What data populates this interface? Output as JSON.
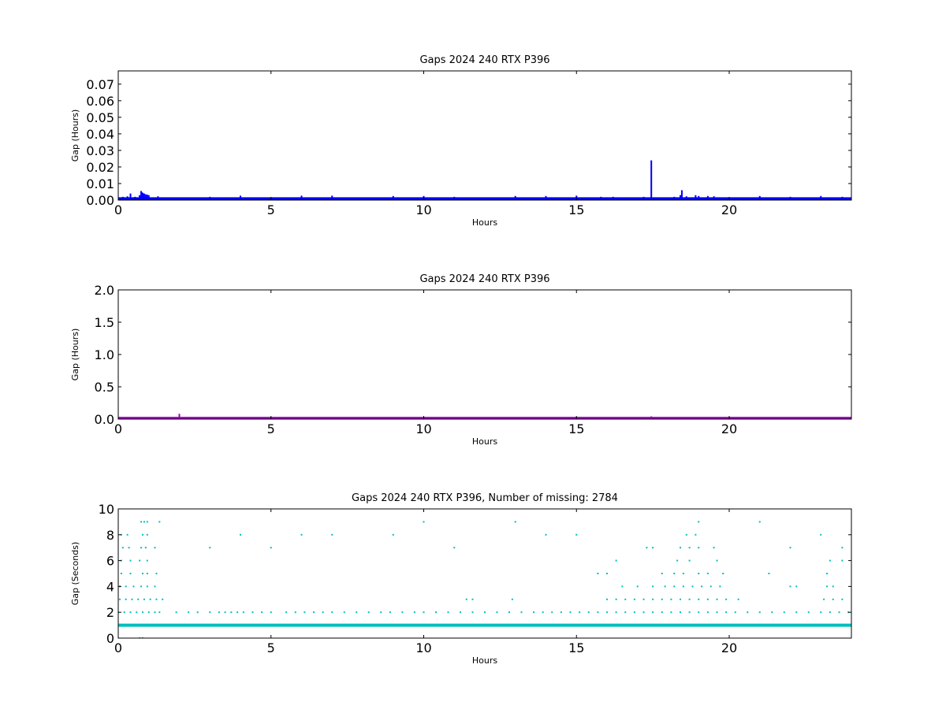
{
  "chart_data": [
    {
      "type": "scatter",
      "title": "Gaps 2024 240 RTX  P396",
      "xlabel": "Hours",
      "ylabel": "Gap (Hours)",
      "xlim": [
        0,
        24
      ],
      "ylim": [
        0,
        0.078
      ],
      "xticks": [
        0,
        5,
        10,
        15,
        20
      ],
      "yticks": [
        0.0,
        0.01,
        0.02,
        0.03,
        0.04,
        0.05,
        0.06,
        0.07
      ],
      "ytick_labels": [
        "0.00",
        "0.01",
        "0.02",
        "0.03",
        "0.04",
        "0.05",
        "0.06",
        "0.07"
      ],
      "grid": false,
      "color": "#0000ff",
      "baseline": {
        "value": 0.0008,
        "x_range": [
          0,
          24
        ]
      },
      "x": [
        0.15,
        0.3,
        0.4,
        0.55,
        0.7,
        0.75,
        0.78,
        0.8,
        0.85,
        0.9,
        0.95,
        1.0,
        1.3,
        3.0,
        4.0,
        6.0,
        7.0,
        9.0,
        10.0,
        11.0,
        13.0,
        14.0,
        15.0,
        15.8,
        16.2,
        17.2,
        17.45,
        18.2,
        18.4,
        18.45,
        18.6,
        18.9,
        19.0,
        19.3,
        19.5,
        21.0,
        22.0,
        23.0,
        23.7
      ],
      "y": [
        0.0015,
        0.0018,
        0.0035,
        0.0015,
        0.0025,
        0.005,
        0.0042,
        0.0038,
        0.0035,
        0.003,
        0.0028,
        0.0025,
        0.0018,
        0.0015,
        0.0022,
        0.0022,
        0.0022,
        0.002,
        0.002,
        0.0015,
        0.002,
        0.002,
        0.0022,
        0.0015,
        0.0015,
        0.0015,
        0.0235,
        0.0015,
        0.0025,
        0.0055,
        0.0018,
        0.0025,
        0.002,
        0.002,
        0.0018,
        0.002,
        0.0015,
        0.002,
        0.0015
      ]
    },
    {
      "type": "scatter",
      "title": "Gaps 2024 240 RTX  P396",
      "xlabel": "Hours",
      "ylabel": "Gap (Hours)",
      "xlim": [
        0,
        24
      ],
      "ylim": [
        0,
        2.0
      ],
      "xticks": [
        0,
        5,
        10,
        15,
        20
      ],
      "yticks": [
        0.0,
        0.5,
        1.0,
        1.5,
        2.0
      ],
      "ytick_labels": [
        "0.0",
        "0.5",
        "1.0",
        "1.5",
        "2.0"
      ],
      "grid": false,
      "color": "#a000c0",
      "baseline": {
        "value": 0.01,
        "x_range": [
          0,
          24
        ]
      },
      "x": [
        2.0,
        17.45
      ],
      "y": [
        0.07,
        0.03
      ]
    },
    {
      "type": "scatter",
      "title": "Gaps 2024 240 RTX  P396, Number of missing: 2784",
      "xlabel": "Hours",
      "ylabel": "Gap (Seconds)",
      "xlim": [
        0,
        24
      ],
      "ylim": [
        0,
        10
      ],
      "xticks": [
        0,
        5,
        10,
        15,
        20
      ],
      "yticks": [
        0,
        2,
        4,
        6,
        8,
        10
      ],
      "ytick_labels": [
        "0",
        "2",
        "4",
        "6",
        "8",
        "10"
      ],
      "grid": false,
      "color": "#00bfbf",
      "baseline": {
        "value": 1,
        "x_range": [
          0,
          24
        ]
      },
      "rows": [
        {
          "y": 0,
          "x": [
            0.7,
            0.8
          ]
        },
        {
          "y": 2,
          "x": [
            0,
            0.2,
            0.4,
            0.6,
            0.8,
            1.0,
            1.2,
            1.35,
            1.9,
            2.3,
            2.6,
            3.0,
            3.3,
            3.5,
            3.7,
            3.9,
            4.1,
            4.4,
            4.7,
            5.0,
            5.5,
            5.8,
            6.1,
            6.4,
            6.7,
            7.0,
            7.4,
            7.8,
            8.2,
            8.6,
            8.9,
            9.3,
            9.7,
            10.0,
            10.4,
            10.8,
            11.2,
            11.6,
            12.0,
            12.4,
            12.8,
            13.2,
            13.6,
            13.9,
            14.2,
            14.5,
            14.8,
            15.1,
            15.4,
            15.7,
            16.0,
            16.3,
            16.6,
            16.9,
            17.2,
            17.5,
            17.8,
            18.1,
            18.4,
            18.7,
            19.0,
            19.3,
            19.6,
            19.9,
            20.2,
            20.6,
            21.0,
            21.4,
            21.8,
            22.2,
            22.6,
            23.0,
            23.3,
            23.6,
            23.9
          ]
        },
        {
          "y": 3,
          "x": [
            0.05,
            0.25,
            0.45,
            0.65,
            0.85,
            1.05,
            1.25,
            1.45,
            11.4,
            11.6,
            12.9,
            16.0,
            16.3,
            16.6,
            16.9,
            17.2,
            17.5,
            17.8,
            18.1,
            18.4,
            18.7,
            19.0,
            19.3,
            19.6,
            19.9,
            20.3,
            23.1,
            23.4,
            23.7
          ]
        },
        {
          "y": 4,
          "x": [
            0.05,
            0.25,
            0.5,
            0.75,
            0.95,
            1.2,
            16.5,
            17.0,
            17.5,
            17.9,
            18.2,
            18.5,
            18.8,
            19.1,
            19.4,
            19.7,
            22.0,
            22.2,
            23.2,
            23.4
          ]
        },
        {
          "y": 5,
          "x": [
            0.1,
            0.4,
            0.8,
            0.95,
            1.25,
            15.7,
            16.0,
            17.8,
            18.2,
            18.5,
            19.0,
            19.3,
            19.8,
            21.3,
            23.2
          ]
        },
        {
          "y": 6,
          "x": [
            0.1,
            0.4,
            0.7,
            0.95,
            16.3,
            18.3,
            18.7,
            19.6,
            23.3,
            23.7
          ]
        },
        {
          "y": 7,
          "x": [
            0.15,
            0.35,
            0.75,
            0.9,
            1.2,
            3.0,
            5.0,
            11.0,
            17.3,
            17.5,
            18.4,
            18.7,
            19.0,
            19.5,
            22.0,
            23.7
          ]
        },
        {
          "y": 8,
          "x": [
            0.1,
            0.3,
            0.8,
            0.95,
            4.0,
            6.0,
            7.0,
            9.0,
            14.0,
            15.0,
            18.6,
            18.9,
            23.0
          ]
        },
        {
          "y": 9,
          "x": [
            0.75,
            0.85,
            0.95,
            1.35,
            10.0,
            13.0,
            19.0,
            21.0
          ]
        }
      ]
    }
  ]
}
